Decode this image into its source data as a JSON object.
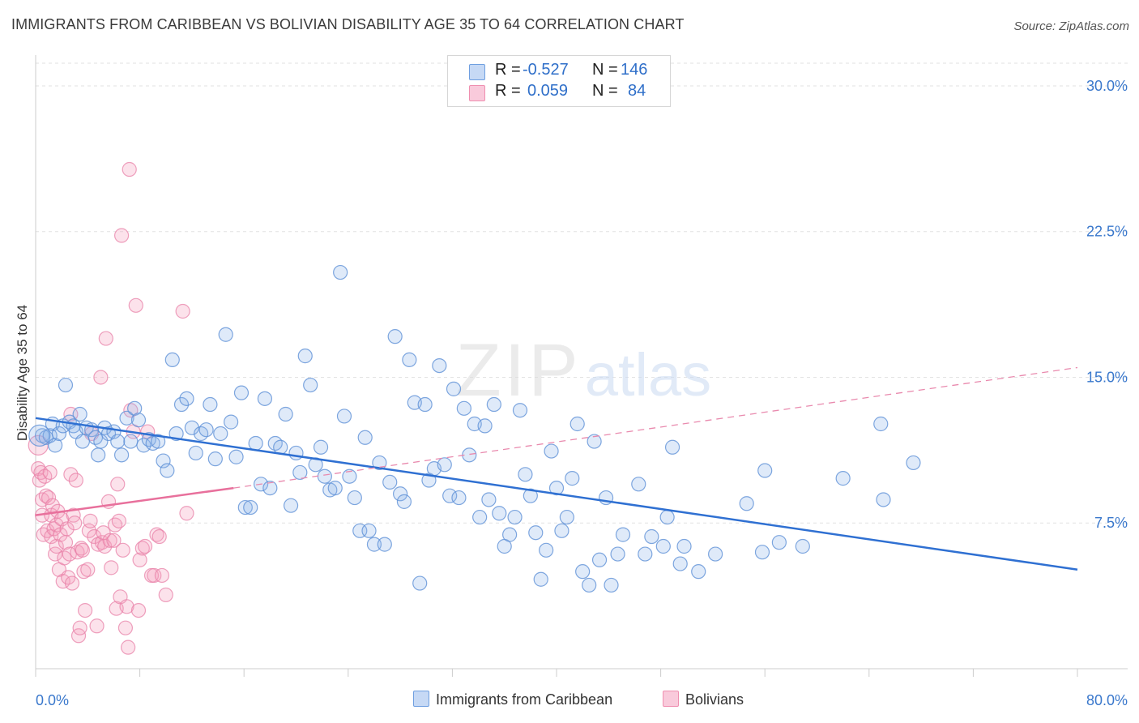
{
  "header": {
    "title": "IMMIGRANTS FROM CARIBBEAN VS BOLIVIAN DISABILITY AGE 35 TO 64 CORRELATION CHART",
    "source": "Source: ZipAtlas.com"
  },
  "watermark": {
    "zip": "ZIP",
    "atlas": "atlas"
  },
  "legend": {
    "rows": [
      {
        "r_label": "R =",
        "r_value": "-0.527",
        "n_label": "N =",
        "n_value": "146",
        "color": "#6f9fe0"
      },
      {
        "r_label": "R =",
        "r_value": "0.059",
        "n_label": "N =",
        "n_value": "84",
        "color": "#ef8fb0"
      }
    ]
  },
  "bottom_legend": {
    "series": [
      {
        "label": "Immigrants from Caribbean",
        "color": "#6f9fe0"
      },
      {
        "label": "Bolivians",
        "color": "#ef8fb0"
      }
    ]
  },
  "chart_data": {
    "type": "scatter",
    "title": "IMMIGRANTS FROM CARIBBEAN VS BOLIVIAN DISABILITY AGE 35 TO 64 CORRELATION CHART",
    "xlabel": "",
    "ylabel": "Disability Age 35 to 64",
    "xlim": [
      0,
      80
    ],
    "ylim": [
      0,
      31.5
    ],
    "x_tick_labels": [
      "0.0%",
      "80.0%"
    ],
    "y_ticks": [
      7.5,
      15.0,
      22.5,
      30.0
    ],
    "y_tick_labels": [
      "7.5%",
      "15.0%",
      "22.5%",
      "30.0%"
    ],
    "grid": "horizontal dashed",
    "legend_position": "top-center",
    "series": [
      {
        "name": "Immigrants from Caribbean",
        "color": "#6f9fe0",
        "trend": {
          "x": [
            0,
            80
          ],
          "y": [
            12.9,
            5.1
          ],
          "style": "solid"
        },
        "points": [
          [
            0.5,
            12.0
          ],
          [
            0.8,
            11.9
          ],
          [
            1.1,
            12.0
          ],
          [
            1.3,
            12.6
          ],
          [
            1.5,
            11.5
          ],
          [
            1.8,
            12.1
          ],
          [
            2.1,
            12.5
          ],
          [
            2.3,
            14.6
          ],
          [
            2.6,
            12.7
          ],
          [
            2.9,
            12.5
          ],
          [
            3.1,
            12.2
          ],
          [
            3.4,
            13.1
          ],
          [
            3.6,
            11.7
          ],
          [
            3.9,
            12.4
          ],
          [
            4.3,
            12.3
          ],
          [
            4.6,
            11.9
          ],
          [
            4.8,
            11.0
          ],
          [
            5.0,
            11.7
          ],
          [
            5.3,
            12.4
          ],
          [
            5.6,
            12.1
          ],
          [
            6.0,
            12.2
          ],
          [
            6.3,
            11.7
          ],
          [
            6.6,
            11.0
          ],
          [
            7.0,
            12.9
          ],
          [
            7.3,
            11.7
          ],
          [
            7.6,
            13.4
          ],
          [
            7.9,
            12.8
          ],
          [
            8.3,
            11.5
          ],
          [
            8.7,
            11.8
          ],
          [
            9.0,
            11.6
          ],
          [
            9.4,
            11.7
          ],
          [
            9.8,
            10.7
          ],
          [
            10.1,
            10.2
          ],
          [
            10.5,
            15.9
          ],
          [
            10.8,
            12.1
          ],
          [
            11.2,
            13.6
          ],
          [
            11.6,
            13.9
          ],
          [
            12.0,
            12.4
          ],
          [
            12.3,
            11.1
          ],
          [
            12.7,
            12.1
          ],
          [
            13.1,
            12.3
          ],
          [
            13.4,
            13.6
          ],
          [
            13.8,
            10.8
          ],
          [
            14.2,
            12.1
          ],
          [
            14.6,
            17.2
          ],
          [
            15.0,
            12.7
          ],
          [
            15.4,
            10.9
          ],
          [
            15.8,
            14.2
          ],
          [
            16.1,
            8.3
          ],
          [
            16.5,
            8.3
          ],
          [
            16.9,
            11.6
          ],
          [
            17.3,
            9.5
          ],
          [
            17.6,
            13.9
          ],
          [
            18.0,
            9.3
          ],
          [
            18.4,
            11.6
          ],
          [
            18.8,
            11.4
          ],
          [
            19.2,
            13.1
          ],
          [
            19.6,
            8.4
          ],
          [
            20.0,
            11.1
          ],
          [
            20.3,
            10.1
          ],
          [
            20.7,
            16.1
          ],
          [
            21.1,
            14.6
          ],
          [
            21.5,
            10.5
          ],
          [
            21.9,
            11.4
          ],
          [
            22.2,
            9.9
          ],
          [
            22.6,
            9.2
          ],
          [
            23.0,
            9.3
          ],
          [
            23.4,
            20.4
          ],
          [
            23.7,
            13.0
          ],
          [
            24.1,
            9.9
          ],
          [
            24.5,
            8.8
          ],
          [
            24.9,
            7.1
          ],
          [
            25.3,
            11.9
          ],
          [
            25.6,
            7.1
          ],
          [
            26.0,
            6.4
          ],
          [
            26.4,
            10.6
          ],
          [
            26.8,
            6.4
          ],
          [
            27.2,
            9.6
          ],
          [
            27.6,
            17.1
          ],
          [
            28.0,
            9.0
          ],
          [
            28.3,
            8.6
          ],
          [
            28.7,
            15.9
          ],
          [
            29.1,
            13.7
          ],
          [
            29.5,
            4.4
          ],
          [
            29.9,
            13.6
          ],
          [
            30.2,
            9.7
          ],
          [
            30.6,
            10.3
          ],
          [
            31.0,
            15.6
          ],
          [
            31.4,
            10.5
          ],
          [
            31.8,
            8.9
          ],
          [
            32.1,
            14.4
          ],
          [
            32.5,
            8.8
          ],
          [
            32.9,
            13.4
          ],
          [
            33.3,
            11.0
          ],
          [
            33.7,
            12.6
          ],
          [
            34.1,
            7.8
          ],
          [
            34.5,
            12.5
          ],
          [
            34.8,
            8.7
          ],
          [
            35.2,
            13.6
          ],
          [
            35.6,
            8.0
          ],
          [
            36.0,
            6.3
          ],
          [
            36.4,
            6.9
          ],
          [
            36.8,
            7.8
          ],
          [
            37.2,
            13.3
          ],
          [
            37.6,
            10.0
          ],
          [
            38.0,
            8.9
          ],
          [
            38.4,
            7.0
          ],
          [
            38.8,
            4.6
          ],
          [
            39.2,
            6.1
          ],
          [
            39.6,
            11.2
          ],
          [
            40.0,
            9.3
          ],
          [
            40.4,
            7.1
          ],
          [
            40.8,
            7.8
          ],
          [
            41.2,
            9.8
          ],
          [
            41.6,
            12.6
          ],
          [
            42.0,
            5.0
          ],
          [
            42.5,
            4.3
          ],
          [
            42.9,
            11.7
          ],
          [
            43.3,
            5.6
          ],
          [
            43.8,
            8.8
          ],
          [
            44.2,
            4.3
          ],
          [
            44.7,
            5.9
          ],
          [
            45.1,
            6.9
          ],
          [
            46.3,
            9.5
          ],
          [
            46.8,
            5.9
          ],
          [
            47.3,
            6.8
          ],
          [
            48.2,
            6.3
          ],
          [
            48.5,
            7.8
          ],
          [
            48.9,
            11.4
          ],
          [
            49.5,
            5.4
          ],
          [
            49.8,
            6.3
          ],
          [
            50.9,
            5.0
          ],
          [
            52.2,
            5.9
          ],
          [
            54.6,
            8.5
          ],
          [
            55.8,
            6.0
          ],
          [
            56.0,
            10.2
          ],
          [
            57.1,
            6.5
          ],
          [
            58.9,
            6.3
          ],
          [
            62.0,
            9.8
          ],
          [
            64.9,
            12.6
          ],
          [
            65.1,
            8.7
          ],
          [
            67.4,
            10.6
          ]
        ]
      },
      {
        "name": "Bolivians",
        "color": "#ef8fb0",
        "trend": {
          "x": [
            0,
            15.2
          ],
          "y": [
            7.9,
            9.3
          ],
          "style": "solid",
          "extension": {
            "x": [
              15.2,
              80
            ],
            "y": [
              9.3,
              15.5
            ],
            "style": "dashed"
          }
        },
        "points": [
          [
            0.2,
            10.3
          ],
          [
            0.3,
            9.7
          ],
          [
            0.4,
            10.1
          ],
          [
            0.5,
            8.7
          ],
          [
            0.5,
            7.9
          ],
          [
            0.6,
            6.9
          ],
          [
            0.7,
            9.9
          ],
          [
            0.8,
            8.9
          ],
          [
            0.9,
            7.1
          ],
          [
            1.0,
            8.8
          ],
          [
            1.1,
            10.1
          ],
          [
            1.2,
            6.8
          ],
          [
            1.2,
            7.9
          ],
          [
            1.3,
            8.4
          ],
          [
            1.4,
            7.2
          ],
          [
            1.5,
            5.9
          ],
          [
            1.6,
            7.4
          ],
          [
            1.6,
            6.3
          ],
          [
            1.7,
            8.1
          ],
          [
            1.8,
            5.1
          ],
          [
            1.9,
            6.9
          ],
          [
            2.0,
            7.7
          ],
          [
            2.1,
            4.5
          ],
          [
            2.2,
            5.7
          ],
          [
            2.3,
            6.5
          ],
          [
            2.4,
            7.2
          ],
          [
            2.5,
            4.7
          ],
          [
            2.6,
            5.9
          ],
          [
            2.7,
            10.0
          ],
          [
            2.7,
            13.1
          ],
          [
            2.8,
            4.4
          ],
          [
            2.9,
            7.9
          ],
          [
            3.0,
            7.5
          ],
          [
            3.1,
            9.7
          ],
          [
            3.2,
            6.0
          ],
          [
            3.3,
            1.7
          ],
          [
            3.4,
            2.1
          ],
          [
            3.5,
            6.2
          ],
          [
            3.6,
            6.1
          ],
          [
            3.7,
            5.0
          ],
          [
            3.8,
            3.0
          ],
          [
            4.0,
            5.1
          ],
          [
            4.1,
            7.1
          ],
          [
            4.2,
            7.6
          ],
          [
            4.3,
            12.1
          ],
          [
            4.5,
            6.8
          ],
          [
            4.7,
            2.2
          ],
          [
            4.8,
            6.4
          ],
          [
            5.0,
            15.0
          ],
          [
            5.1,
            6.5
          ],
          [
            5.2,
            7.0
          ],
          [
            5.3,
            6.3
          ],
          [
            5.4,
            17.0
          ],
          [
            5.6,
            8.6
          ],
          [
            5.7,
            6.6
          ],
          [
            5.8,
            5.2
          ],
          [
            6.0,
            6.6
          ],
          [
            6.1,
            7.4
          ],
          [
            6.2,
            3.1
          ],
          [
            6.3,
            9.5
          ],
          [
            6.4,
            7.6
          ],
          [
            6.5,
            3.7
          ],
          [
            6.6,
            22.3
          ],
          [
            6.7,
            6.1
          ],
          [
            6.9,
            2.1
          ],
          [
            7.0,
            3.2
          ],
          [
            7.1,
            1.1
          ],
          [
            7.2,
            25.7
          ],
          [
            7.3,
            13.3
          ],
          [
            7.5,
            12.2
          ],
          [
            7.7,
            18.7
          ],
          [
            7.9,
            3.0
          ],
          [
            8.0,
            5.6
          ],
          [
            8.2,
            6.2
          ],
          [
            8.4,
            6.3
          ],
          [
            8.6,
            12.2
          ],
          [
            8.9,
            4.8
          ],
          [
            9.1,
            4.8
          ],
          [
            9.3,
            6.9
          ],
          [
            9.5,
            6.8
          ],
          [
            9.7,
            4.8
          ],
          [
            10.0,
            3.8
          ],
          [
            11.3,
            18.4
          ],
          [
            11.6,
            8.0
          ]
        ]
      }
    ]
  }
}
